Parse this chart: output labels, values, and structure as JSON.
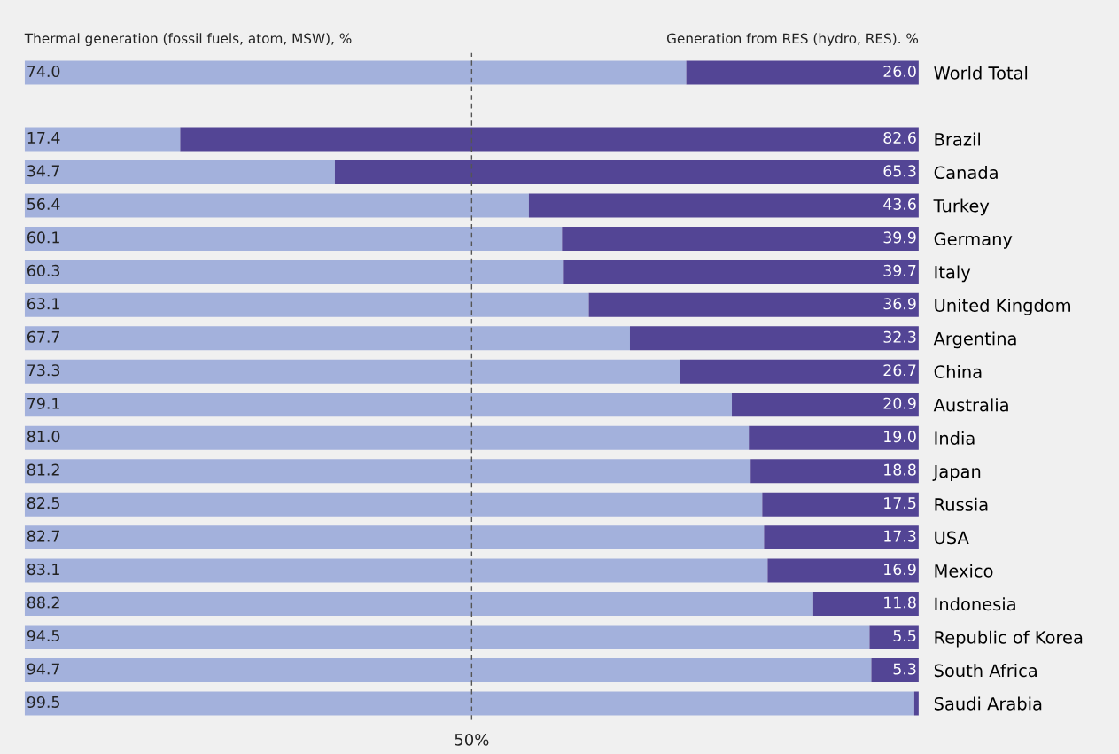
{
  "chart_data": {
    "type": "bar",
    "orientation": "horizontal",
    "stacked": true,
    "xlim": [
      0,
      100
    ],
    "tick_labels": "y",
    "legend": false,
    "grid": false,
    "categories": [
      "World Total",
      null,
      "Brazil",
      "Canada",
      "Turkey",
      "Germany",
      "Italy",
      "United Kingdom",
      "Argentina",
      "China",
      "Australia",
      "India",
      "Japan",
      "Russia",
      "USA",
      "Mexico",
      "Indonesia",
      "Republic of Korea",
      "South Africa",
      "Saudi Arabia"
    ],
    "series": [
      {
        "name": "Thermal generation (fossil fuels, atom, MSW), %",
        "color": "#a3b1dc",
        "values": [
          74.0,
          null,
          17.4,
          34.7,
          56.4,
          60.1,
          60.3,
          63.1,
          67.7,
          73.3,
          79.1,
          81.0,
          81.2,
          82.5,
          82.7,
          83.1,
          88.2,
          94.5,
          94.7,
          99.5
        ],
        "value_labels": [
          "74.0",
          null,
          "17.4",
          "34.7",
          "56.4",
          "60.1",
          "60.3",
          "63.1",
          "67.7",
          "73.3",
          "79.1",
          "81.0",
          "81.2",
          "82.5",
          "82.7",
          "83.1",
          "88.2",
          "94.5",
          "94.7",
          "99.5"
        ]
      },
      {
        "name": "Generation from RES (hydro, RES). %",
        "color": "#534595",
        "values": [
          26.0,
          null,
          82.6,
          65.3,
          43.6,
          39.9,
          39.7,
          36.9,
          32.3,
          26.7,
          20.9,
          19.0,
          18.8,
          17.5,
          17.3,
          16.9,
          11.8,
          5.5,
          5.3,
          0.5
        ],
        "value_labels": [
          "26.0",
          null,
          "82.6",
          "65.3",
          "43.6",
          "39.9",
          "39.7",
          "36.9",
          "32.3",
          "26.7",
          "20.9",
          "19.0",
          "18.8",
          "17.5",
          "17.3",
          "16.9",
          "11.8",
          "5.5",
          "5.3",
          null
        ]
      }
    ],
    "ref_lines": [
      {
        "axis": "x",
        "value": 50,
        "label": "50%",
        "color": "#555555",
        "line_style": "dashed"
      }
    ]
  }
}
